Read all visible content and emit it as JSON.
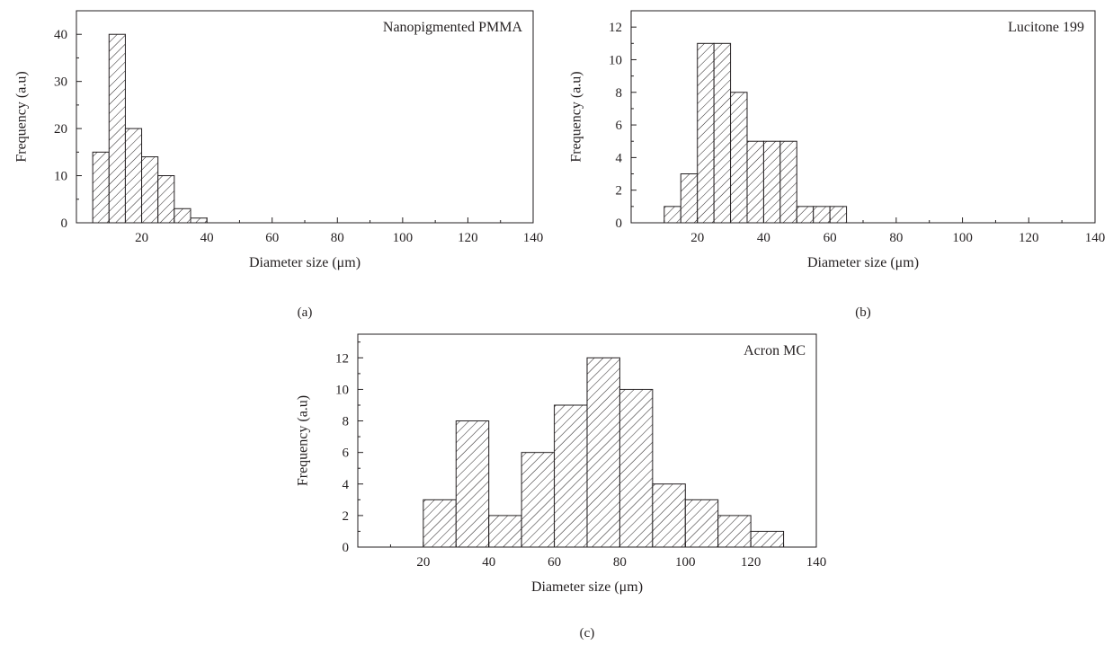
{
  "figure": {
    "colors": {
      "ink": "#231f20",
      "background": "#ffffff"
    }
  },
  "chart_data": [
    {
      "type": "bar",
      "title": "Nanopigmented PMMA",
      "caption": "(a)",
      "xlabel": "Diameter size (μm)",
      "ylabel": "Frequency (a.u)",
      "xlim": [
        0,
        140
      ],
      "ylim": [
        0,
        45
      ],
      "xticks": [
        20,
        40,
        60,
        80,
        100,
        120,
        140
      ],
      "yticks": [
        0,
        10,
        20,
        30,
        40
      ],
      "legend": "top-right",
      "grid": false,
      "fill": "diagonal-hatch",
      "bins": [
        {
          "x0": 5,
          "x1": 10,
          "value": 15
        },
        {
          "x0": 10,
          "x1": 15,
          "value": 40
        },
        {
          "x0": 15,
          "x1": 20,
          "value": 20
        },
        {
          "x0": 20,
          "x1": 25,
          "value": 14
        },
        {
          "x0": 25,
          "x1": 30,
          "value": 10
        },
        {
          "x0": 30,
          "x1": 35,
          "value": 3
        },
        {
          "x0": 35,
          "x1": 40,
          "value": 1
        }
      ]
    },
    {
      "type": "bar",
      "title": "Lucitone 199",
      "caption": "(b)",
      "xlabel": "Diameter size (μm)",
      "ylabel": "Frequency (a.u)",
      "xlim": [
        0,
        140
      ],
      "ylim": [
        0,
        13
      ],
      "xticks": [
        20,
        40,
        60,
        80,
        100,
        120,
        140
      ],
      "yticks": [
        0,
        2,
        4,
        6,
        8,
        10,
        12
      ],
      "legend": "top-right",
      "grid": false,
      "fill": "diagonal-hatch",
      "bins": [
        {
          "x0": 10,
          "x1": 15,
          "value": 1
        },
        {
          "x0": 15,
          "x1": 20,
          "value": 3
        },
        {
          "x0": 20,
          "x1": 25,
          "value": 11
        },
        {
          "x0": 25,
          "x1": 30,
          "value": 11
        },
        {
          "x0": 30,
          "x1": 35,
          "value": 8
        },
        {
          "x0": 35,
          "x1": 40,
          "value": 5
        },
        {
          "x0": 40,
          "x1": 45,
          "value": 5
        },
        {
          "x0": 45,
          "x1": 50,
          "value": 5
        },
        {
          "x0": 50,
          "x1": 55,
          "value": 1
        },
        {
          "x0": 55,
          "x1": 60,
          "value": 1
        },
        {
          "x0": 60,
          "x1": 65,
          "value": 1
        }
      ]
    },
    {
      "type": "bar",
      "title": "Acron MC",
      "caption": "(c)",
      "xlabel": "Diameter size (μm)",
      "ylabel": "Frequency (a.u)",
      "xlim": [
        0,
        140
      ],
      "ylim": [
        0,
        13.5
      ],
      "xticks": [
        20,
        40,
        60,
        80,
        100,
        120,
        140
      ],
      "yticks": [
        0,
        2,
        4,
        6,
        8,
        10,
        12
      ],
      "legend": "top-right",
      "grid": false,
      "fill": "diagonal-hatch",
      "bins": [
        {
          "x0": 20,
          "x1": 30,
          "value": 3
        },
        {
          "x0": 30,
          "x1": 40,
          "value": 8
        },
        {
          "x0": 40,
          "x1": 50,
          "value": 2
        },
        {
          "x0": 50,
          "x1": 60,
          "value": 6
        },
        {
          "x0": 60,
          "x1": 70,
          "value": 9
        },
        {
          "x0": 70,
          "x1": 80,
          "value": 12
        },
        {
          "x0": 80,
          "x1": 90,
          "value": 10
        },
        {
          "x0": 90,
          "x1": 100,
          "value": 4
        },
        {
          "x0": 100,
          "x1": 110,
          "value": 3
        },
        {
          "x0": 110,
          "x1": 120,
          "value": 2
        },
        {
          "x0": 120,
          "x1": 130,
          "value": 1
        }
      ]
    }
  ]
}
